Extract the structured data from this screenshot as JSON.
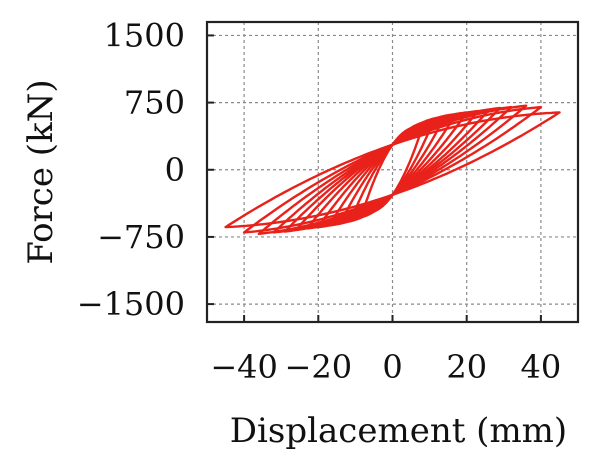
{
  "chart_data": {
    "type": "line",
    "xlabel": "Displacement (mm)",
    "ylabel": "Force (kN)",
    "xlim": [
      -50,
      50
    ],
    "ylim": [
      -1700,
      1650
    ],
    "x_ticks": [
      -40,
      -20,
      0,
      20,
      40
    ],
    "x_tick_labels": [
      "−40",
      "−20",
      "0",
      "20",
      "40"
    ],
    "y_ticks": [
      1500,
      750,
      0,
      -750,
      -1500
    ],
    "y_tick_labels": [
      "1500",
      "750",
      "0",
      "−750",
      "−1500"
    ],
    "grid": true,
    "legend": "none",
    "series_color": "#e8221b",
    "loops": [
      {
        "amplitude": 8,
        "peak_force": 470
      },
      {
        "amplitude": 11,
        "peak_force": 540
      },
      {
        "amplitude": 14,
        "peak_force": 590
      },
      {
        "amplitude": 17,
        "peak_force": 620
      },
      {
        "amplitude": 20,
        "peak_force": 640
      },
      {
        "amplitude": 23,
        "peak_force": 655
      },
      {
        "amplitude": 26,
        "peak_force": 670
      },
      {
        "amplitude": 29,
        "peak_force": 690
      },
      {
        "amplitude": 32,
        "peak_force": 700
      },
      {
        "amplitude": 36,
        "peak_force": 715
      },
      {
        "amplitude": 40,
        "peak_force": 700
      },
      {
        "amplitude": 45,
        "peak_force": 640
      }
    ],
    "pinch_force": 280
  }
}
